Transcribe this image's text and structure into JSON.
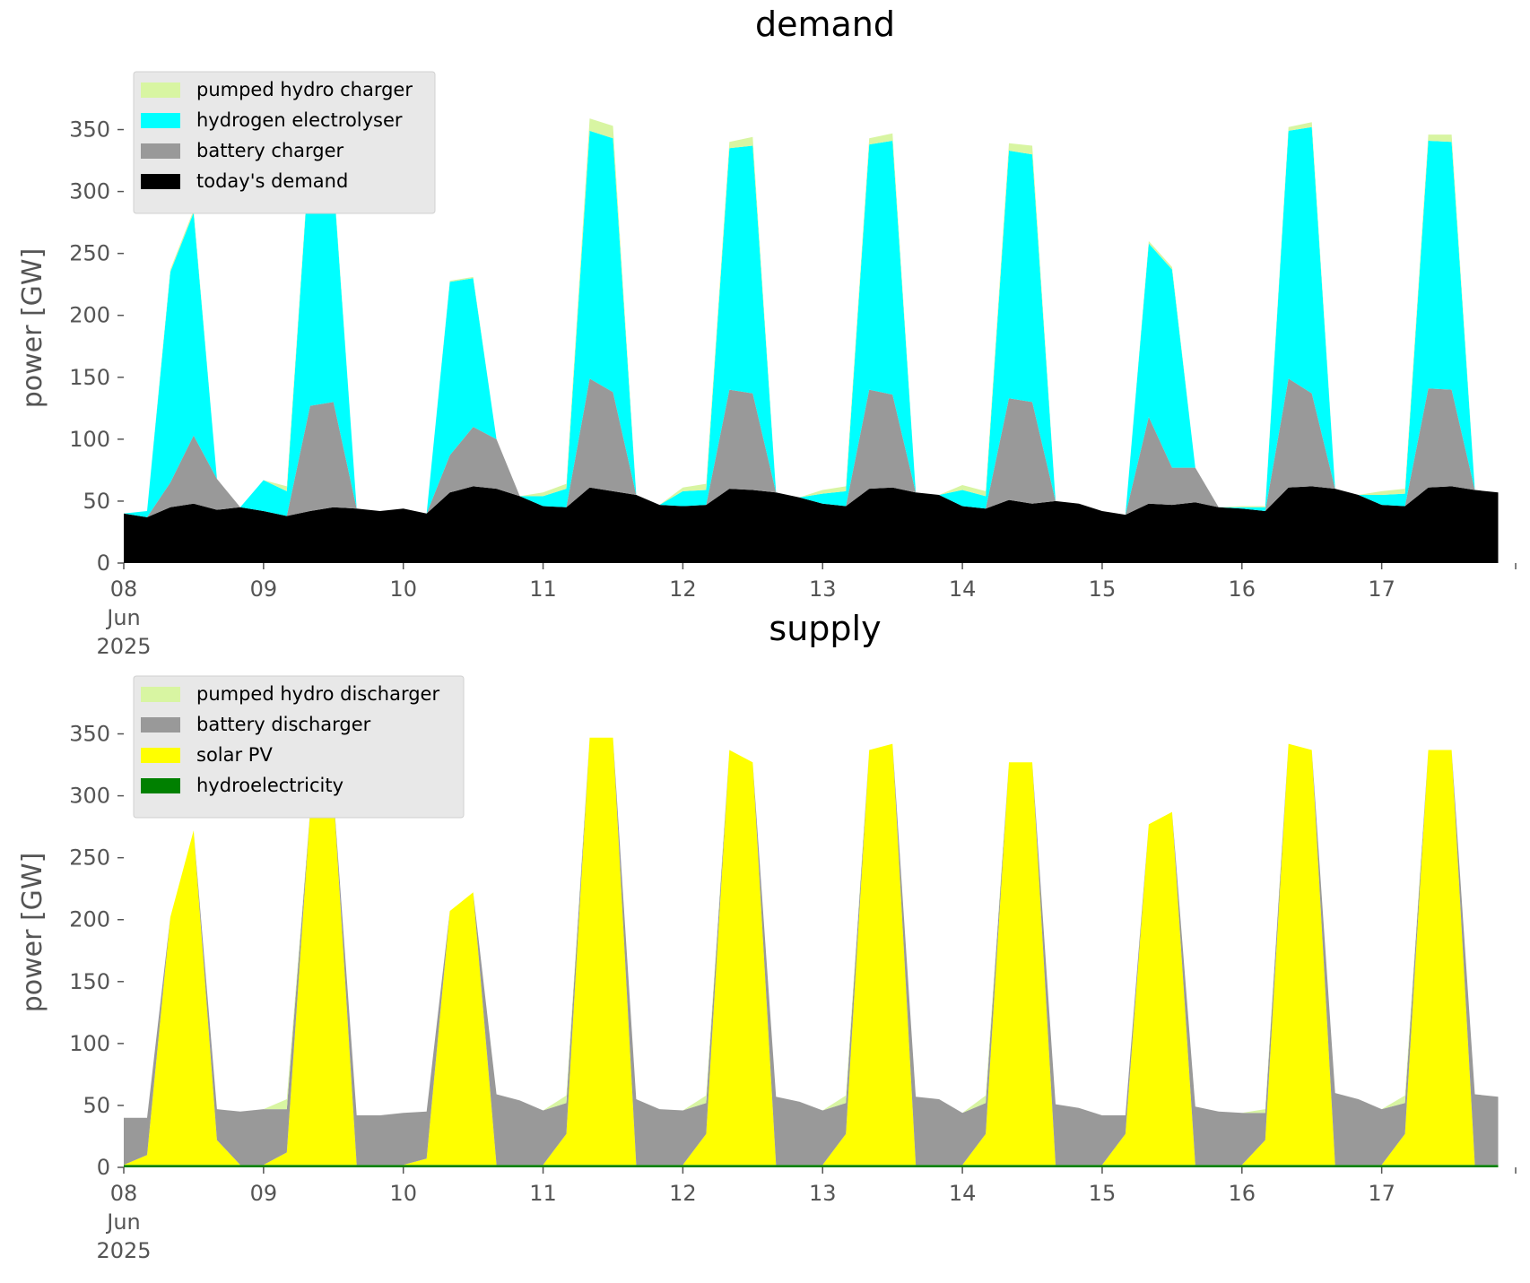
{
  "chart_data": [
    {
      "type": "area",
      "stacked": true,
      "title": "demand",
      "ylabel": "power [GW]",
      "xlabel": "",
      "ylim": [
        0,
        375
      ],
      "yticks": [
        0,
        50,
        100,
        150,
        200,
        250,
        300,
        350
      ],
      "x_range": [
        "2025-06-08 00:00",
        "2025-06-17 23:00"
      ],
      "x_step_hours": 4,
      "xtick_labels": [
        {
          "date": "2025-06-08",
          "lines": [
            "08",
            "Jun",
            "2025"
          ]
        },
        {
          "date": "2025-06-09",
          "lines": [
            "09"
          ]
        },
        {
          "date": "2025-06-10",
          "lines": [
            "10"
          ]
        },
        {
          "date": "2025-06-11",
          "lines": [
            "11"
          ]
        },
        {
          "date": "2025-06-12",
          "lines": [
            "12"
          ]
        },
        {
          "date": "2025-06-13",
          "lines": [
            "13"
          ]
        },
        {
          "date": "2025-06-14",
          "lines": [
            "14"
          ]
        },
        {
          "date": "2025-06-15",
          "lines": [
            "15"
          ]
        },
        {
          "date": "2025-06-16",
          "lines": [
            "16"
          ]
        },
        {
          "date": "2025-06-17",
          "lines": [
            "17"
          ]
        }
      ],
      "legend": {
        "position": "upper-left",
        "entries": [
          "pumped hydro charger",
          "hydrogen electrolyser",
          "battery charger",
          "today's demand"
        ]
      },
      "grid": false,
      "series": [
        {
          "name": "today's demand",
          "color": "#000000",
          "values": [
            40,
            37,
            45,
            48,
            43,
            45,
            42,
            38,
            42,
            45,
            44,
            42,
            44,
            40,
            57,
            62,
            60,
            54,
            46,
            45,
            61,
            58,
            55,
            47,
            46,
            47,
            60,
            59,
            57,
            53,
            48,
            46,
            60,
            61,
            57,
            55,
            46,
            44,
            51,
            48,
            50,
            48,
            42,
            39,
            48,
            47,
            49,
            45,
            44,
            42,
            61,
            62,
            60,
            55,
            47,
            46,
            61,
            62,
            59,
            57
          ]
        },
        {
          "name": "battery charger",
          "color": "#999999",
          "values": [
            0,
            0,
            20,
            55,
            25,
            0,
            0,
            0,
            85,
            85,
            0,
            0,
            0,
            0,
            30,
            48,
            40,
            0,
            0,
            0,
            88,
            80,
            0,
            0,
            0,
            0,
            80,
            78,
            0,
            0,
            0,
            0,
            80,
            75,
            0,
            0,
            0,
            0,
            82,
            82,
            0,
            0,
            0,
            0,
            70,
            30,
            28,
            0,
            0,
            0,
            88,
            75,
            0,
            0,
            0,
            0,
            80,
            78,
            0,
            0
          ]
        },
        {
          "name": "hydrogen electrolyser",
          "color": "#00ffff",
          "values": [
            0,
            5,
            170,
            180,
            0,
            0,
            25,
            20,
            210,
            180,
            0,
            0,
            0,
            0,
            140,
            120,
            0,
            0,
            8,
            15,
            200,
            205,
            0,
            0,
            12,
            12,
            195,
            200,
            0,
            0,
            8,
            12,
            198,
            205,
            0,
            0,
            13,
            10,
            200,
            200,
            0,
            0,
            0,
            0,
            140,
            160,
            0,
            0,
            1,
            3,
            200,
            215,
            0,
            0,
            8,
            10,
            200,
            200,
            0,
            0
          ]
        },
        {
          "name": "pumped hydro charger",
          "color": "#d8f5a2",
          "values": [
            0,
            0,
            2,
            2,
            0,
            0,
            0,
            4,
            2,
            2,
            0,
            0,
            0,
            0,
            1,
            1,
            0,
            0,
            3,
            4,
            10,
            10,
            0,
            0,
            3,
            5,
            5,
            7,
            0,
            0,
            3,
            4,
            5,
            6,
            0,
            0,
            4,
            4,
            6,
            7,
            0,
            0,
            0,
            0,
            2,
            2,
            0,
            0,
            1,
            1,
            3,
            4,
            0,
            0,
            3,
            4,
            5,
            6,
            0,
            0
          ]
        }
      ]
    },
    {
      "type": "area",
      "stacked": true,
      "title": "supply",
      "ylabel": "power [GW]",
      "xlabel": "",
      "ylim": [
        0,
        375
      ],
      "yticks": [
        0,
        50,
        100,
        150,
        200,
        250,
        300,
        350
      ],
      "x_range": [
        "2025-06-08 00:00",
        "2025-06-17 23:00"
      ],
      "x_step_hours": 4,
      "xtick_labels": [
        {
          "date": "2025-06-08",
          "lines": [
            "08",
            "Jun",
            "2025"
          ]
        },
        {
          "date": "2025-06-09",
          "lines": [
            "09"
          ]
        },
        {
          "date": "2025-06-10",
          "lines": [
            "10"
          ]
        },
        {
          "date": "2025-06-11",
          "lines": [
            "11"
          ]
        },
        {
          "date": "2025-06-12",
          "lines": [
            "12"
          ]
        },
        {
          "date": "2025-06-13",
          "lines": [
            "13"
          ]
        },
        {
          "date": "2025-06-14",
          "lines": [
            "14"
          ]
        },
        {
          "date": "2025-06-15",
          "lines": [
            "15"
          ]
        },
        {
          "date": "2025-06-16",
          "lines": [
            "16"
          ]
        },
        {
          "date": "2025-06-17",
          "lines": [
            "17"
          ]
        }
      ],
      "legend": {
        "position": "upper-left",
        "entries": [
          "pumped hydro discharger",
          "battery discharger",
          "solar PV",
          "hydroelectricity"
        ]
      },
      "grid": false,
      "series": [
        {
          "name": "hydroelectricity",
          "color": "#008000",
          "values": [
            2,
            2,
            2,
            2,
            2,
            2,
            2,
            2,
            2,
            2,
            2,
            2,
            2,
            2,
            2,
            2,
            2,
            2,
            2,
            2,
            2,
            2,
            2,
            2,
            2,
            2,
            2,
            2,
            2,
            2,
            2,
            2,
            2,
            2,
            2,
            2,
            2,
            2,
            2,
            2,
            2,
            2,
            2,
            2,
            2,
            2,
            2,
            2,
            2,
            2,
            2,
            2,
            2,
            2,
            2,
            2,
            2,
            2,
            2,
            2
          ]
        },
        {
          "name": "solar PV",
          "color": "#ffff00",
          "values": [
            0,
            8,
            200,
            270,
            20,
            0,
            0,
            10,
            285,
            300,
            0,
            0,
            0,
            5,
            205,
            220,
            0,
            0,
            0,
            25,
            345,
            345,
            0,
            0,
            0,
            25,
            335,
            325,
            0,
            0,
            0,
            25,
            335,
            340,
            0,
            0,
            0,
            25,
            325,
            325,
            0,
            0,
            0,
            25,
            275,
            285,
            0,
            0,
            0,
            20,
            340,
            335,
            0,
            0,
            0,
            25,
            335,
            335,
            0,
            0
          ]
        },
        {
          "name": "battery discharger",
          "color": "#999999",
          "values": [
            38,
            30,
            0,
            0,
            25,
            43,
            45,
            35,
            0,
            0,
            40,
            40,
            42,
            38,
            0,
            0,
            57,
            52,
            44,
            25,
            0,
            0,
            53,
            45,
            44,
            25,
            0,
            0,
            55,
            51,
            44,
            25,
            0,
            0,
            55,
            53,
            42,
            25,
            0,
            0,
            49,
            46,
            40,
            15,
            0,
            0,
            47,
            43,
            42,
            22,
            0,
            0,
            58,
            53,
            45,
            25,
            0,
            0,
            57,
            55
          ]
        },
        {
          "name": "pumped hydro discharger",
          "color": "#d8f5a2",
          "values": [
            0,
            0,
            0,
            0,
            0,
            0,
            0,
            8,
            0,
            0,
            0,
            0,
            0,
            0,
            0,
            0,
            0,
            0,
            0,
            6,
            0,
            0,
            0,
            0,
            0,
            6,
            0,
            0,
            0,
            0,
            0,
            6,
            0,
            0,
            0,
            0,
            0,
            6,
            0,
            0,
            0,
            0,
            0,
            0,
            0,
            0,
            0,
            0,
            0,
            3,
            0,
            0,
            0,
            0,
            0,
            6,
            0,
            0,
            0,
            0
          ]
        }
      ]
    }
  ]
}
